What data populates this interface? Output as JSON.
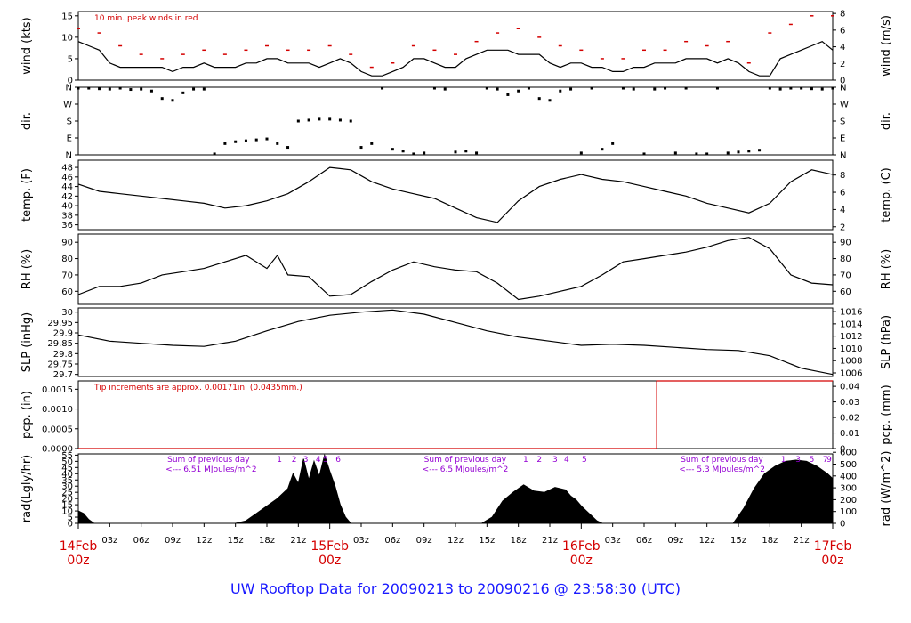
{
  "title": "UW Rooftop Data for 20090213  to  20090216 @ 23:58:30  (UTC)",
  "colors": {
    "red": "#d40000",
    "purple": "#9400d3",
    "blue": "#1a1aff",
    "black": "#000000"
  },
  "time_axis": {
    "day_labels": [
      {
        "h": 0,
        "date": "14Feb",
        "z": "00z"
      },
      {
        "h": 24,
        "date": "15Feb",
        "z": "00z"
      },
      {
        "h": 48,
        "date": "16Feb",
        "z": "00z"
      },
      {
        "h": 72,
        "date": "17Feb",
        "z": "00z"
      }
    ],
    "hour_labels": [
      {
        "h": 3,
        "t": "03z"
      },
      {
        "h": 6,
        "t": "06z"
      },
      {
        "h": 9,
        "t": "09z"
      },
      {
        "h": 12,
        "t": "12z"
      },
      {
        "h": 15,
        "t": "15z"
      },
      {
        "h": 18,
        "t": "18z"
      },
      {
        "h": 21,
        "t": "21z"
      },
      {
        "h": 27,
        "t": "03z"
      },
      {
        "h": 30,
        "t": "06z"
      },
      {
        "h": 33,
        "t": "09z"
      },
      {
        "h": 36,
        "t": "12z"
      },
      {
        "h": 39,
        "t": "15z"
      },
      {
        "h": 42,
        "t": "18z"
      },
      {
        "h": 45,
        "t": "21z"
      },
      {
        "h": 51,
        "t": "03z"
      },
      {
        "h": 54,
        "t": "06z"
      },
      {
        "h": 57,
        "t": "09z"
      },
      {
        "h": 60,
        "t": "12z"
      },
      {
        "h": 63,
        "t": "15z"
      },
      {
        "h": 66,
        "t": "18z"
      },
      {
        "h": 69,
        "t": "21z"
      }
    ]
  },
  "chart_data": [
    {
      "id": "wind",
      "type": "line",
      "ylabel_left": "wind (kts)",
      "ylabel_right": "wind (m/s)",
      "ylim": [
        0,
        16
      ],
      "yticks_left": [
        0,
        5,
        10,
        15
      ],
      "ylim_right": [
        0,
        8.23
      ],
      "yticks_right": [
        0,
        2,
        4,
        6,
        8
      ],
      "annotation": "10 min. peak winds in red",
      "series": [
        {
          "color": "black",
          "x_hours": [
            0,
            1,
            2,
            3,
            4,
            5,
            6,
            7,
            8,
            9,
            10,
            11,
            12,
            13,
            14,
            15,
            16,
            17,
            18,
            19,
            20,
            21,
            22,
            23,
            24,
            25,
            26,
            27,
            28,
            29,
            30,
            31,
            32,
            33,
            34,
            35,
            36,
            37,
            38,
            39,
            40,
            41,
            42,
            43,
            44,
            45,
            46,
            47,
            48,
            49,
            50,
            51,
            52,
            53,
            54,
            55,
            56,
            57,
            58,
            59,
            60,
            61,
            62,
            63,
            64,
            65,
            66,
            67,
            68,
            69,
            70,
            71,
            72
          ],
          "values": [
            9,
            8,
            7,
            4,
            3,
            3,
            3,
            3,
            3,
            2,
            3,
            3,
            4,
            3,
            3,
            3,
            4,
            4,
            5,
            5,
            4,
            4,
            4,
            3,
            4,
            5,
            4,
            2,
            1,
            1,
            2,
            3,
            5,
            5,
            4,
            3,
            3,
            5,
            6,
            7,
            7,
            7,
            6,
            6,
            6,
            4,
            3,
            4,
            4,
            3,
            3,
            2,
            2,
            3,
            3,
            4,
            4,
            4,
            5,
            5,
            5,
            4,
            5,
            4,
            2,
            1,
            1,
            5,
            6,
            7,
            8,
            9,
            7
          ]
        },
        {
          "color": "red",
          "x_hours": [
            0,
            2,
            4,
            6,
            8,
            10,
            12,
            14,
            16,
            18,
            20,
            22,
            24,
            26,
            28,
            30,
            32,
            34,
            36,
            38,
            40,
            42,
            44,
            46,
            48,
            50,
            52,
            54,
            56,
            58,
            60,
            62,
            64,
            66,
            68,
            70,
            72
          ],
          "values": [
            12,
            11,
            8,
            6,
            5,
            6,
            7,
            6,
            7,
            8,
            7,
            7,
            8,
            6,
            3,
            4,
            8,
            7,
            6,
            9,
            11,
            12,
            10,
            8,
            7,
            5,
            5,
            7,
            7,
            9,
            8,
            9,
            4,
            11,
            13,
            15,
            15
          ]
        }
      ]
    },
    {
      "id": "dir",
      "type": "scatter",
      "ylabel_left": "dir.",
      "ylabel_right": "dir.",
      "yticks_labels": [
        "N",
        "E",
        "S",
        "W",
        "N"
      ],
      "ylim": [
        0,
        360
      ],
      "series": [
        {
          "color": "black",
          "x_hours": [
            0,
            1,
            2,
            3,
            4,
            5,
            6,
            7,
            8,
            9,
            10,
            11,
            12,
            13,
            14,
            15,
            16,
            17,
            18,
            19,
            20,
            21,
            22,
            23,
            24,
            25,
            26,
            27,
            28,
            29,
            30,
            31,
            32,
            33,
            34,
            35,
            36,
            37,
            38,
            39,
            40,
            41,
            42,
            43,
            44,
            45,
            46,
            47,
            48,
            49,
            50,
            51,
            52,
            53,
            54,
            55,
            56,
            57,
            58,
            59,
            60,
            61,
            62,
            63,
            64,
            65,
            66,
            67,
            68,
            69,
            70,
            71,
            72
          ],
          "values": [
            355,
            355,
            352,
            350,
            355,
            348,
            350,
            340,
            300,
            290,
            330,
            350,
            350,
            5,
            60,
            70,
            75,
            80,
            85,
            60,
            40,
            180,
            185,
            190,
            190,
            185,
            180,
            40,
            60,
            355,
            30,
            20,
            5,
            10,
            355,
            350,
            15,
            20,
            10,
            355,
            350,
            320,
            340,
            355,
            300,
            290,
            340,
            350,
            10,
            355,
            30,
            60,
            355,
            350,
            5,
            350,
            355,
            10,
            355,
            5,
            5,
            355,
            10,
            15,
            20,
            25,
            355,
            350,
            355,
            355,
            352,
            350,
            355
          ]
        }
      ]
    },
    {
      "id": "temp",
      "type": "line",
      "ylabel_left": "temp. (F)",
      "ylabel_right": "temp. (C)",
      "ylim": [
        35,
        49.5
      ],
      "yticks_left": [
        36,
        38,
        40,
        42,
        44,
        46,
        48
      ],
      "yticks_right": [
        2,
        4,
        6,
        8
      ],
      "series": [
        {
          "color": "black",
          "x_hours": [
            0,
            2,
            4,
            6,
            8,
            10,
            12,
            14,
            16,
            18,
            20,
            22,
            24,
            26,
            28,
            30,
            32,
            34,
            36,
            38,
            40,
            42,
            44,
            46,
            48,
            50,
            52,
            54,
            56,
            58,
            60,
            62,
            64,
            66,
            68,
            70,
            72
          ],
          "values": [
            44.5,
            43,
            42.5,
            42,
            41.5,
            41,
            40.5,
            39.5,
            40,
            41,
            42.5,
            45,
            48,
            47.5,
            45,
            43.5,
            42.5,
            41.5,
            39.5,
            37.5,
            36.5,
            41,
            44,
            45.5,
            46.5,
            45.5,
            45,
            44,
            43,
            42,
            40.5,
            39.5,
            38.5,
            40.5,
            45,
            47.5,
            46.5
          ]
        }
      ]
    },
    {
      "id": "rh",
      "type": "line",
      "ylabel_left": "RH (%)",
      "ylabel_right": "RH (%)",
      "ylim": [
        52,
        95
      ],
      "yticks_left": [
        60,
        70,
        80,
        90
      ],
      "yticks_right": [
        60,
        70,
        80,
        90
      ],
      "series": [
        {
          "color": "black",
          "x_hours": [
            0,
            2,
            4,
            6,
            8,
            10,
            12,
            14,
            16,
            18,
            19,
            20,
            22,
            24,
            26,
            28,
            30,
            32,
            34,
            36,
            38,
            40,
            42,
            44,
            46,
            48,
            50,
            52,
            54,
            56,
            58,
            60,
            62,
            64,
            66,
            68,
            70,
            72
          ],
          "values": [
            58,
            63,
            63,
            65,
            70,
            72,
            74,
            78,
            82,
            74,
            82,
            70,
            69,
            57,
            58,
            66,
            73,
            78,
            75,
            73,
            72,
            65,
            55,
            57,
            60,
            63,
            70,
            78,
            80,
            82,
            84,
            87,
            91,
            93,
            86,
            70,
            65,
            64
          ]
        }
      ]
    },
    {
      "id": "slp",
      "type": "line",
      "ylabel_left": "SLP (inHg)",
      "ylabel_right": "SLP (hPa)",
      "ylim": [
        29.69,
        30.02
      ],
      "yticks_left": [
        29.7,
        29.75,
        29.8,
        29.85,
        29.9,
        29.95,
        30.0
      ],
      "yticks_right": [
        1006,
        1008,
        1010,
        1012,
        1014,
        1016
      ],
      "series": [
        {
          "color": "black",
          "x_hours": [
            0,
            3,
            6,
            9,
            12,
            15,
            18,
            21,
            24,
            27,
            30,
            33,
            36,
            39,
            42,
            45,
            48,
            51,
            54,
            57,
            60,
            63,
            66,
            69,
            72
          ],
          "values": [
            29.89,
            29.86,
            29.85,
            29.84,
            29.835,
            29.86,
            29.91,
            29.955,
            29.985,
            30.0,
            30.01,
            29.99,
            29.95,
            29.91,
            29.88,
            29.86,
            29.84,
            29.845,
            29.84,
            29.83,
            29.82,
            29.815,
            29.79,
            29.73,
            29.7
          ]
        }
      ]
    },
    {
      "id": "pcp",
      "type": "line",
      "ylabel_left": "pcp. (in)",
      "ylabel_right": "pcp. (mm)",
      "ylim": [
        0,
        0.00171
      ],
      "yticks_left": [
        "0.0000",
        "0.0005",
        "0.0010",
        "0.0015"
      ],
      "yticks_right": [
        "0",
        "0.01",
        "0.02",
        "0.03",
        "0.04"
      ],
      "annotation": "Tip increments are approx. 0.00171in. (0.0435mm.)",
      "series": [
        {
          "color": "red",
          "x_hours": [
            0,
            55.2,
            55.2,
            72
          ],
          "values": [
            0,
            0,
            0.00171,
            0.00171
          ]
        }
      ]
    },
    {
      "id": "rad",
      "type": "area",
      "ylabel_left": "rad(Lgly/hr)",
      "ylabel_right": "rad (W/m^2)",
      "ylim": [
        0,
        56
      ],
      "yticks_left": [
        0,
        5,
        10,
        15,
        20,
        25,
        30,
        35,
        40,
        45,
        50,
        55
      ],
      "yticks_right": [
        0,
        100,
        200,
        300,
        400,
        500,
        600
      ],
      "notes": [
        {
          "h": 8.5,
          "line1": "Sum of previous day",
          "line2": "<--- 6.51 MJoules/m^2"
        },
        {
          "h": 33,
          "line1": "Sum of previous day",
          "line2": "<--- 6.5 MJoules/m^2"
        },
        {
          "h": 57.5,
          "line1": "Sum of previous day",
          "line2": "<--- 5.3 MJoules/m^2"
        }
      ],
      "hour_marks": [
        {
          "h": 19.2,
          "t": "1"
        },
        {
          "h": 20.6,
          "t": "2"
        },
        {
          "h": 21.7,
          "t": "3"
        },
        {
          "h": 22.9,
          "t": "4"
        },
        {
          "h": 23.6,
          "t": "5"
        },
        {
          "h": 24.8,
          "t": "6"
        },
        {
          "h": 42.7,
          "t": "1"
        },
        {
          "h": 44.0,
          "t": "2"
        },
        {
          "h": 45.5,
          "t": "3"
        },
        {
          "h": 46.6,
          "t": "4"
        },
        {
          "h": 48.3,
          "t": "5"
        },
        {
          "h": 67.3,
          "t": "1"
        },
        {
          "h": 68.7,
          "t": "3"
        },
        {
          "h": 70.0,
          "t": "5"
        },
        {
          "h": 71.3,
          "t": "7"
        },
        {
          "h": 72.8,
          "t": "9"
        }
      ],
      "series": [
        {
          "color": "black",
          "x_hours": [
            0,
            0.5,
            1,
            1.5,
            15,
            16,
            17,
            18,
            19,
            20,
            20.5,
            21,
            21.5,
            22,
            22.5,
            23,
            23.5,
            24,
            24.5,
            25,
            25.5,
            26,
            38.5,
            39.5,
            40.5,
            41.5,
            42.5,
            43.5,
            44.5,
            45.5,
            46.5,
            47,
            47.5,
            48,
            48.5,
            49,
            49.5,
            50,
            62.5,
            63.5,
            64.5,
            65.5,
            66.5,
            67.5,
            68.5,
            69.5,
            70.5,
            71.5,
            72
          ],
          "values": [
            10,
            8,
            3,
            0,
            0,
            2,
            8,
            14,
            20,
            28,
            40,
            32,
            52,
            35,
            50,
            38,
            55,
            42,
            30,
            15,
            5,
            0,
            0,
            5,
            18,
            25,
            31,
            26,
            25,
            29,
            27,
            22,
            19,
            14,
            10,
            6,
            2,
            0,
            0,
            12,
            28,
            40,
            46,
            50,
            51,
            50,
            46,
            40,
            36
          ]
        }
      ]
    }
  ]
}
